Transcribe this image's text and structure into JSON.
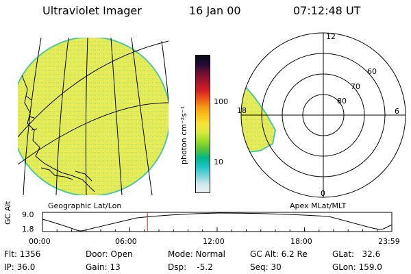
{
  "header": {
    "title": "Ultraviolet Imager",
    "date": "16 Jan 00",
    "time": "07:12:48 UT"
  },
  "geo_panel": {
    "label": "Geographic Lat/Lon"
  },
  "colorbar": {
    "unit_label": "photon cm⁻²s⁻¹",
    "ticks": [
      "100",
      "10"
    ],
    "colors": [
      "#e9f2f4",
      "#cfe6ea",
      "#6fd3d8",
      "#1fc4c7",
      "#00b58c",
      "#53c43a",
      "#9bd92a",
      "#d8ea3d",
      "#f6e33a",
      "#f9c21a",
      "#f59a12",
      "#ea5318",
      "#d11e26",
      "#a3142a",
      "#6a1034",
      "#1f0a33",
      "#0a0a1a"
    ]
  },
  "polar_panel": {
    "label": "Apex MLat/MLT",
    "mlt_labels": {
      "top": "12",
      "left": "18",
      "right": "6",
      "bottom": "0"
    },
    "lat_labels": [
      "60",
      "70",
      "80"
    ]
  },
  "timeline": {
    "ylabel": "GC Alt",
    "yticks": [
      "9.0",
      "1.8"
    ],
    "xticks": [
      "00:00",
      "06:00",
      "12:00",
      "18:00",
      "23:59"
    ],
    "marker_time_hours": 7.21
  },
  "status": {
    "flt": "Flt: 1356",
    "ip": "IP: 36.0",
    "door": "Door: Open",
    "gain": "Gain: 13",
    "mode": "Mode: Normal",
    "dsp": "Dsp:    -5.2",
    "gc_alt": "GC Alt: 6.2 Re",
    "seq": "Seq: 30",
    "glat": "GLat:   32.6",
    "glon": "GLon: 159.0"
  },
  "colors": {
    "auroral_fill": "#e2ec56",
    "auroral_edge": "#4fc8a0",
    "marker": "#d62222"
  }
}
